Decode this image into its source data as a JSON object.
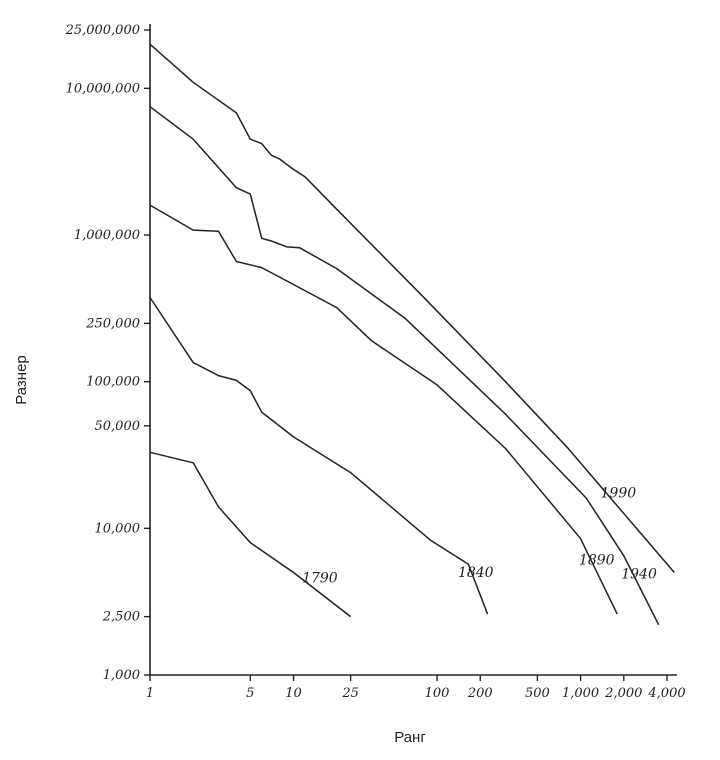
{
  "chart_data": {
    "type": "line",
    "xlabel": "Ранг",
    "ylabel": "Разнер",
    "x_scale": "log",
    "y_scale": "log",
    "xlim": [
      1,
      4000
    ],
    "ylim": [
      1000,
      25000000
    ],
    "grid": false,
    "x_ticks": [
      {
        "value": 1,
        "label": "1"
      },
      {
        "value": 5,
        "label": "5"
      },
      {
        "value": 10,
        "label": "10"
      },
      {
        "value": 25,
        "label": "25"
      },
      {
        "value": 100,
        "label": "100"
      },
      {
        "value": 200,
        "label": "200"
      },
      {
        "value": 500,
        "label": "500"
      },
      {
        "value": 1000,
        "label": "1,000"
      },
      {
        "value": 2000,
        "label": "2,000"
      },
      {
        "value": 4000,
        "label": "4,000"
      }
    ],
    "y_ticks": [
      {
        "value": 25000000,
        "label": "25,000,000"
      },
      {
        "value": 10000000,
        "label": "10,000,000"
      },
      {
        "value": 1000000,
        "label": "1,000,000"
      },
      {
        "value": 250000,
        "label": "250,000"
      },
      {
        "value": 100000,
        "label": "100,000"
      },
      {
        "value": 50000,
        "label": "50,000"
      },
      {
        "value": 10000,
        "label": "10,000"
      },
      {
        "value": 2500,
        "label": "2,500"
      },
      {
        "value": 1000,
        "label": "1,000"
      }
    ],
    "series": [
      {
        "name": "1790",
        "x": [
          1,
          2,
          3,
          5,
          10,
          25
        ],
        "y": [
          33000,
          28000,
          14000,
          8000,
          5000,
          2500
        ]
      },
      {
        "name": "1840",
        "x": [
          1,
          2,
          3,
          4,
          5,
          6,
          10,
          25,
          90,
          165,
          225
        ],
        "y": [
          375000,
          135000,
          110000,
          102000,
          87000,
          62000,
          42000,
          24000,
          8300,
          5700,
          2600
        ]
      },
      {
        "name": "1890",
        "x": [
          1,
          2,
          3,
          4,
          6,
          10,
          20,
          35,
          100,
          300,
          1000,
          1800
        ],
        "y": [
          1600000,
          1080000,
          1060000,
          660000,
          600000,
          460000,
          320000,
          190000,
          95000,
          35000,
          8500,
          2600
        ]
      },
      {
        "name": "1940",
        "x": [
          1,
          2,
          4,
          5,
          6,
          7,
          9,
          11,
          20,
          60,
          300,
          1100,
          2000,
          3500
        ],
        "y": [
          7500000,
          4500000,
          2100000,
          1900000,
          950000,
          910000,
          830000,
          820000,
          590000,
          270000,
          60000,
          16000,
          6500,
          2200
        ]
      },
      {
        "name": "1990",
        "x": [
          1,
          2,
          4,
          5,
          6,
          7,
          8,
          10,
          12,
          20,
          80,
          300,
          800,
          4500
        ],
        "y": [
          20000000,
          11000000,
          6800000,
          4500000,
          4200000,
          3500000,
          3300000,
          2800000,
          2500000,
          1500000,
          380000,
          100000,
          36000,
          5000
        ]
      }
    ]
  }
}
